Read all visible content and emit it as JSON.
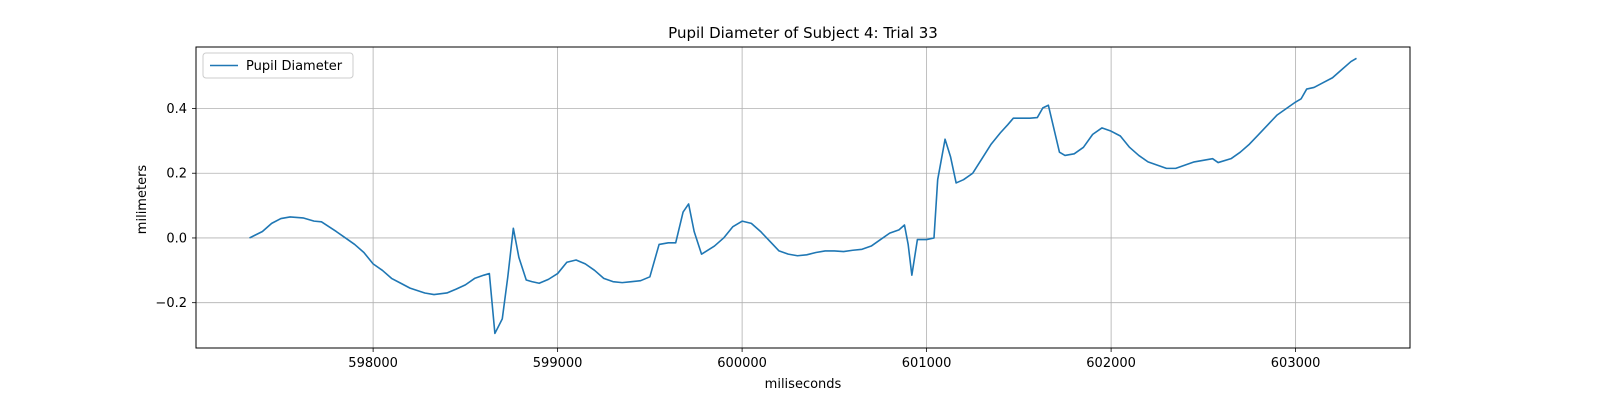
{
  "chart_data": {
    "type": "line",
    "title": "Pupil Diameter of Subject 4: Trial 33",
    "xlabel": "miliseconds",
    "ylabel": "milimeters",
    "xlim": [
      597040,
      603620
    ],
    "ylim": [
      -0.34,
      0.59
    ],
    "xticks": [
      598000,
      599000,
      600000,
      601000,
      602000,
      603000
    ],
    "yticks": [
      -0.2,
      0.0,
      0.2,
      0.4
    ],
    "xtick_labels": [
      "598000",
      "599000",
      "600000",
      "601000",
      "602000",
      "603000"
    ],
    "ytick_labels": [
      "−0.2",
      "0.0",
      "0.2",
      "0.4"
    ],
    "grid": true,
    "legend": {
      "position": "top-left",
      "entries": [
        "Pupil Diameter"
      ]
    },
    "series": [
      {
        "name": "Pupil Diameter",
        "color": "#1f77b4",
        "points": [
          [
            597330,
            0.0
          ],
          [
            597400,
            0.02
          ],
          [
            597450,
            0.045
          ],
          [
            597500,
            0.06
          ],
          [
            597550,
            0.065
          ],
          [
            597620,
            0.062
          ],
          [
            597680,
            0.052
          ],
          [
            597720,
            0.05
          ],
          [
            597800,
            0.02
          ],
          [
            597850,
            0.0
          ],
          [
            597900,
            -0.02
          ],
          [
            597950,
            -0.045
          ],
          [
            598000,
            -0.08
          ],
          [
            598050,
            -0.1
          ],
          [
            598100,
            -0.125
          ],
          [
            598150,
            -0.14
          ],
          [
            598200,
            -0.155
          ],
          [
            598280,
            -0.17
          ],
          [
            598330,
            -0.175
          ],
          [
            598400,
            -0.17
          ],
          [
            598450,
            -0.158
          ],
          [
            598500,
            -0.145
          ],
          [
            598550,
            -0.125
          ],
          [
            598600,
            -0.115
          ],
          [
            598630,
            -0.11
          ],
          [
            598660,
            -0.295
          ],
          [
            598700,
            -0.25
          ],
          [
            598730,
            -0.12
          ],
          [
            598760,
            0.03
          ],
          [
            598790,
            -0.06
          ],
          [
            598830,
            -0.13
          ],
          [
            598860,
            -0.135
          ],
          [
            598900,
            -0.14
          ],
          [
            598950,
            -0.128
          ],
          [
            599000,
            -0.11
          ],
          [
            599050,
            -0.075
          ],
          [
            599100,
            -0.068
          ],
          [
            599150,
            -0.08
          ],
          [
            599200,
            -0.1
          ],
          [
            599250,
            -0.125
          ],
          [
            599300,
            -0.135
          ],
          [
            599350,
            -0.138
          ],
          [
            599400,
            -0.135
          ],
          [
            599450,
            -0.132
          ],
          [
            599500,
            -0.12
          ],
          [
            599550,
            -0.02
          ],
          [
            599600,
            -0.015
          ],
          [
            599640,
            -0.015
          ],
          [
            599680,
            0.08
          ],
          [
            599710,
            0.105
          ],
          [
            599740,
            0.02
          ],
          [
            599780,
            -0.05
          ],
          [
            599850,
            -0.025
          ],
          [
            599900,
            0.0
          ],
          [
            599950,
            0.035
          ],
          [
            600000,
            0.052
          ],
          [
            600050,
            0.045
          ],
          [
            600100,
            0.02
          ],
          [
            600150,
            -0.01
          ],
          [
            600200,
            -0.04
          ],
          [
            600250,
            -0.05
          ],
          [
            600300,
            -0.055
          ],
          [
            600350,
            -0.052
          ],
          [
            600400,
            -0.045
          ],
          [
            600450,
            -0.04
          ],
          [
            600500,
            -0.04
          ],
          [
            600550,
            -0.042
          ],
          [
            600600,
            -0.038
          ],
          [
            600650,
            -0.035
          ],
          [
            600700,
            -0.025
          ],
          [
            600750,
            -0.005
          ],
          [
            600800,
            0.015
          ],
          [
            600850,
            0.025
          ],
          [
            600880,
            0.04
          ],
          [
            600900,
            -0.02
          ],
          [
            600920,
            -0.115
          ],
          [
            600950,
            -0.005
          ],
          [
            601000,
            -0.005
          ],
          [
            601040,
            0.0
          ],
          [
            601060,
            0.18
          ],
          [
            601100,
            0.305
          ],
          [
            601130,
            0.25
          ],
          [
            601160,
            0.17
          ],
          [
            601200,
            0.18
          ],
          [
            601250,
            0.2
          ],
          [
            601300,
            0.245
          ],
          [
            601350,
            0.29
          ],
          [
            601400,
            0.325
          ],
          [
            601440,
            0.35
          ],
          [
            601470,
            0.37
          ],
          [
            601520,
            0.37
          ],
          [
            601560,
            0.37
          ],
          [
            601600,
            0.372
          ],
          [
            601630,
            0.402
          ],
          [
            601660,
            0.41
          ],
          [
            601720,
            0.265
          ],
          [
            601750,
            0.255
          ],
          [
            601800,
            0.26
          ],
          [
            601850,
            0.28
          ],
          [
            601900,
            0.32
          ],
          [
            601950,
            0.34
          ],
          [
            602000,
            0.33
          ],
          [
            602050,
            0.315
          ],
          [
            602100,
            0.28
          ],
          [
            602150,
            0.255
          ],
          [
            602200,
            0.235
          ],
          [
            602250,
            0.225
          ],
          [
            602300,
            0.215
          ],
          [
            602350,
            0.215
          ],
          [
            602400,
            0.225
          ],
          [
            602450,
            0.235
          ],
          [
            602500,
            0.24
          ],
          [
            602550,
            0.245
          ],
          [
            602580,
            0.233
          ],
          [
            602650,
            0.245
          ],
          [
            602700,
            0.265
          ],
          [
            602750,
            0.29
          ],
          [
            602800,
            0.32
          ],
          [
            602850,
            0.35
          ],
          [
            602900,
            0.38
          ],
          [
            602950,
            0.4
          ],
          [
            603000,
            0.42
          ],
          [
            603030,
            0.43
          ],
          [
            603060,
            0.46
          ],
          [
            603100,
            0.465
          ],
          [
            603150,
            0.48
          ],
          [
            603200,
            0.495
          ],
          [
            603250,
            0.52
          ],
          [
            603300,
            0.545
          ],
          [
            603330,
            0.555
          ]
        ]
      }
    ]
  }
}
